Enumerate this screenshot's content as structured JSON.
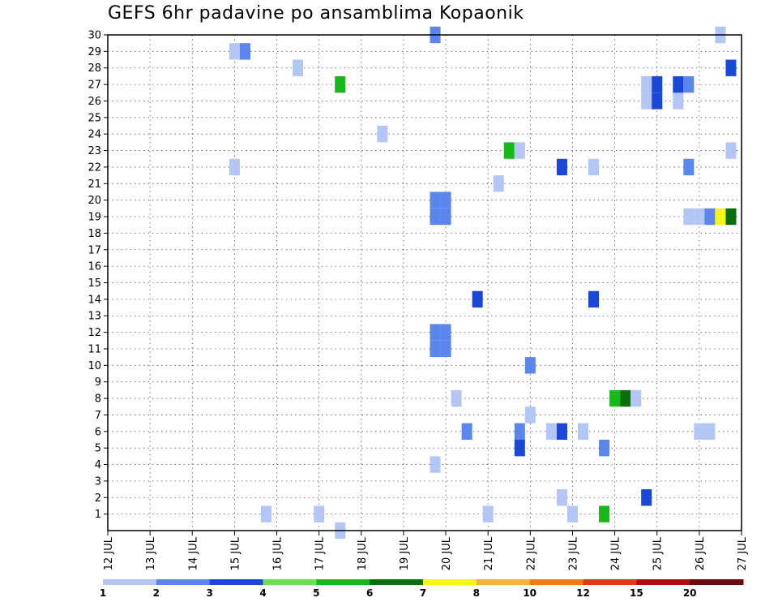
{
  "chart_data": {
    "type": "heatmap",
    "title": "GEFS 6hr padavine po ansamblima Kopaonik",
    "xlabel": "",
    "ylabel": "",
    "x_tick_labels": [
      "12 JUL",
      "13 JUL",
      "14 JUL",
      "15 JUL",
      "16 JUL",
      "17 JUL",
      "18 JUL",
      "19 JUL",
      "20 JUL",
      "21 JUL",
      "22 JUL",
      "23 JUL",
      "24 JUL",
      "25 JUL",
      "26 JUL",
      "27 JUL"
    ],
    "x_range_days": [
      12,
      27
    ],
    "y_range": [
      0,
      30
    ],
    "y_ticks": [
      1,
      2,
      3,
      4,
      5,
      6,
      7,
      8,
      9,
      10,
      11,
      12,
      13,
      14,
      15,
      16,
      17,
      18,
      19,
      20,
      21,
      22,
      23,
      24,
      25,
      26,
      27,
      28,
      29,
      30
    ],
    "grid": true,
    "colorbar": {
      "colors": [
        "#b3c6f5",
        "#5b86ee",
        "#1a47d6",
        "#6be050",
        "#16b81a",
        "#0a6e0a",
        "#f5f516",
        "#f8b43a",
        "#f57a14",
        "#e03a14",
        "#a80f0f",
        "#6a0a0a"
      ],
      "tick_labels": [
        "1",
        "2",
        "3",
        "4",
        "5",
        "6",
        "7",
        "8",
        "10",
        "12",
        "15",
        "20"
      ]
    },
    "cells": [
      {
        "day": 15.0,
        "member": 29,
        "level": 0
      },
      {
        "day": 15.25,
        "member": 29,
        "level": 1
      },
      {
        "day": 15.0,
        "member": 22,
        "level": 0
      },
      {
        "day": 15.75,
        "member": 1,
        "level": 0
      },
      {
        "day": 16.5,
        "member": 28,
        "level": 0
      },
      {
        "day": 17.0,
        "member": 1,
        "level": 0
      },
      {
        "day": 17.5,
        "member": 27,
        "level": 4
      },
      {
        "day": 17.5,
        "member": 0,
        "level": 0
      },
      {
        "day": 18.5,
        "member": 24,
        "level": 0
      },
      {
        "day": 19.75,
        "member": 30,
        "level": 1
      },
      {
        "day": 19.75,
        "member": 19,
        "level": 1
      },
      {
        "day": 20.0,
        "member": 19,
        "level": 1
      },
      {
        "day": 19.75,
        "member": 20,
        "level": 1
      },
      {
        "day": 20.0,
        "member": 20,
        "level": 1
      },
      {
        "day": 19.75,
        "member": 11,
        "level": 1
      },
      {
        "day": 20.0,
        "member": 11,
        "level": 1
      },
      {
        "day": 19.75,
        "member": 12,
        "level": 1
      },
      {
        "day": 20.0,
        "member": 12,
        "level": 1
      },
      {
        "day": 19.75,
        "member": 4,
        "level": 0
      },
      {
        "day": 20.25,
        "member": 8,
        "level": 0
      },
      {
        "day": 20.5,
        "member": 6,
        "level": 1
      },
      {
        "day": 20.75,
        "member": 14,
        "level": 2
      },
      {
        "day": 21.0,
        "member": 1,
        "level": 0
      },
      {
        "day": 21.25,
        "member": 21,
        "level": 0
      },
      {
        "day": 21.5,
        "member": 23,
        "level": 4
      },
      {
        "day": 21.75,
        "member": 23,
        "level": 0
      },
      {
        "day": 21.75,
        "member": 6,
        "level": 1
      },
      {
        "day": 21.75,
        "member": 5,
        "level": 2
      },
      {
        "day": 22.0,
        "member": 10,
        "level": 1
      },
      {
        "day": 22.0,
        "member": 7,
        "level": 0
      },
      {
        "day": 22.5,
        "member": 6,
        "level": 0
      },
      {
        "day": 22.75,
        "member": 6,
        "level": 2
      },
      {
        "day": 22.75,
        "member": 22,
        "level": 2
      },
      {
        "day": 22.75,
        "member": 2,
        "level": 0
      },
      {
        "day": 23.0,
        "member": 1,
        "level": 0
      },
      {
        "day": 23.25,
        "member": 6,
        "level": 0
      },
      {
        "day": 23.5,
        "member": 22,
        "level": 0
      },
      {
        "day": 23.5,
        "member": 14,
        "level": 2
      },
      {
        "day": 23.75,
        "member": 5,
        "level": 1
      },
      {
        "day": 23.75,
        "member": 1,
        "level": 4
      },
      {
        "day": 24.0,
        "member": 8,
        "level": 4
      },
      {
        "day": 24.25,
        "member": 8,
        "level": 5
      },
      {
        "day": 24.5,
        "member": 8,
        "level": 0
      },
      {
        "day": 24.75,
        "member": 26,
        "level": 0
      },
      {
        "day": 24.75,
        "member": 27,
        "level": 0
      },
      {
        "day": 25.0,
        "member": 26,
        "level": 2
      },
      {
        "day": 25.0,
        "member": 27,
        "level": 2
      },
      {
        "day": 24.75,
        "member": 2,
        "level": 2
      },
      {
        "day": 25.5,
        "member": 26,
        "level": 0
      },
      {
        "day": 25.5,
        "member": 27,
        "level": 2
      },
      {
        "day": 25.75,
        "member": 27,
        "level": 1
      },
      {
        "day": 25.75,
        "member": 22,
        "level": 1
      },
      {
        "day": 25.75,
        "member": 19,
        "level": 0
      },
      {
        "day": 26.0,
        "member": 19,
        "level": 0
      },
      {
        "day": 26.25,
        "member": 19,
        "level": 1
      },
      {
        "day": 26.5,
        "member": 19,
        "level": 6
      },
      {
        "day": 26.75,
        "member": 19,
        "level": 5
      },
      {
        "day": 26.0,
        "member": 6,
        "level": 0
      },
      {
        "day": 26.25,
        "member": 6,
        "level": 0
      },
      {
        "day": 26.5,
        "member": 30,
        "level": 0
      },
      {
        "day": 26.75,
        "member": 28,
        "level": 2
      },
      {
        "day": 26.75,
        "member": 23,
        "level": 0
      }
    ]
  }
}
